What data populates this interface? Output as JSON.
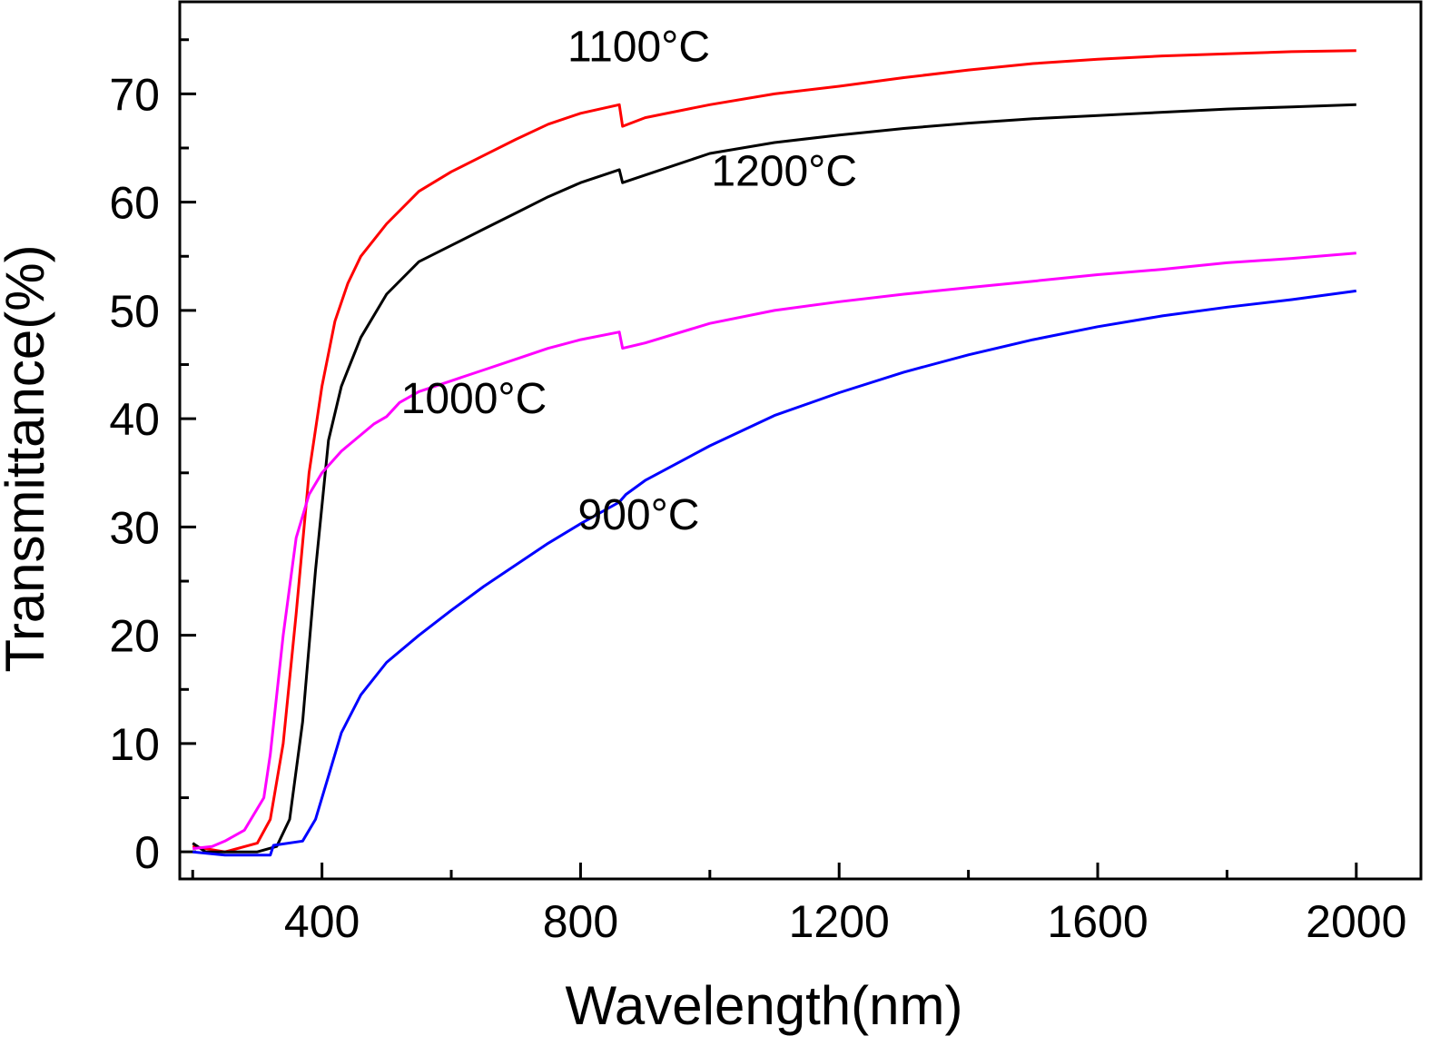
{
  "chart_data": {
    "type": "line",
    "xlabel": "Wavelength(nm)",
    "ylabel": "Transmittance(%)",
    "xlim": [
      180,
      2100
    ],
    "ylim": [
      -2.5,
      78.5
    ],
    "xticks": [
      400,
      800,
      1200,
      1600,
      2000
    ],
    "xtick_labels": [
      "400",
      "800",
      "1200",
      "1600",
      "2000"
    ],
    "yticks": [
      0,
      10,
      20,
      30,
      40,
      50,
      60,
      70
    ],
    "ytick_labels": [
      "0",
      "10",
      "20",
      "30",
      "40",
      "50",
      "60",
      "70"
    ],
    "grid": false,
    "legend": "none",
    "series": [
      {
        "color": "#ff0000",
        "points": [
          [
            200,
            0.5
          ],
          [
            250,
            0
          ],
          [
            300,
            0.8
          ],
          [
            320,
            3
          ],
          [
            340,
            10
          ],
          [
            360,
            22
          ],
          [
            380,
            35
          ],
          [
            400,
            43
          ],
          [
            420,
            49
          ],
          [
            440,
            52.5
          ],
          [
            460,
            55
          ],
          [
            500,
            58
          ],
          [
            550,
            61
          ],
          [
            600,
            62.8
          ],
          [
            650,
            64.3
          ],
          [
            700,
            65.8
          ],
          [
            750,
            67.2
          ],
          [
            800,
            68.2
          ],
          [
            860,
            69
          ],
          [
            865,
            67
          ],
          [
            900,
            67.8
          ],
          [
            1000,
            69
          ],
          [
            1100,
            70
          ],
          [
            1200,
            70.7
          ],
          [
            1300,
            71.5
          ],
          [
            1400,
            72.2
          ],
          [
            1500,
            72.8
          ],
          [
            1600,
            73.2
          ],
          [
            1700,
            73.5
          ],
          [
            1800,
            73.7
          ],
          [
            1900,
            73.9
          ],
          [
            2000,
            74
          ]
        ]
      },
      {
        "color": "#000000",
        "points": [
          [
            200,
            0.8
          ],
          [
            220,
            0
          ],
          [
            300,
            0
          ],
          [
            330,
            0.5
          ],
          [
            350,
            3
          ],
          [
            370,
            12
          ],
          [
            390,
            26
          ],
          [
            410,
            38
          ],
          [
            430,
            43
          ],
          [
            460,
            47.5
          ],
          [
            500,
            51.5
          ],
          [
            550,
            54.5
          ],
          [
            600,
            56
          ],
          [
            650,
            57.5
          ],
          [
            700,
            59
          ],
          [
            750,
            60.5
          ],
          [
            800,
            61.8
          ],
          [
            860,
            63
          ],
          [
            865,
            61.8
          ],
          [
            900,
            62.5
          ],
          [
            1000,
            64.5
          ],
          [
            1100,
            65.5
          ],
          [
            1200,
            66.2
          ],
          [
            1300,
            66.8
          ],
          [
            1400,
            67.3
          ],
          [
            1500,
            67.7
          ],
          [
            1600,
            68
          ],
          [
            1700,
            68.3
          ],
          [
            1800,
            68.6
          ],
          [
            1900,
            68.8
          ],
          [
            2000,
            69
          ]
        ]
      },
      {
        "color": "#ff00ff",
        "points": [
          [
            200,
            0.3
          ],
          [
            230,
            0.5
          ],
          [
            250,
            1
          ],
          [
            280,
            2
          ],
          [
            310,
            5
          ],
          [
            320,
            9
          ],
          [
            340,
            20
          ],
          [
            360,
            29
          ],
          [
            380,
            33
          ],
          [
            400,
            35
          ],
          [
            430,
            37
          ],
          [
            460,
            38.5
          ],
          [
            480,
            39.5
          ],
          [
            500,
            40.2
          ],
          [
            520,
            41.5
          ],
          [
            550,
            42.5
          ],
          [
            600,
            43.5
          ],
          [
            650,
            44.5
          ],
          [
            700,
            45.5
          ],
          [
            750,
            46.5
          ],
          [
            800,
            47.3
          ],
          [
            860,
            48
          ],
          [
            865,
            46.5
          ],
          [
            900,
            47
          ],
          [
            1000,
            48.8
          ],
          [
            1100,
            50
          ],
          [
            1200,
            50.8
          ],
          [
            1300,
            51.5
          ],
          [
            1400,
            52.1
          ],
          [
            1500,
            52.7
          ],
          [
            1600,
            53.3
          ],
          [
            1700,
            53.8
          ],
          [
            1800,
            54.4
          ],
          [
            1900,
            54.8
          ],
          [
            2000,
            55.3
          ]
        ]
      },
      {
        "color": "#0000ff",
        "points": [
          [
            200,
            0
          ],
          [
            250,
            -0.3
          ],
          [
            320,
            -0.3
          ],
          [
            325,
            0.6
          ],
          [
            370,
            1
          ],
          [
            390,
            3
          ],
          [
            410,
            7
          ],
          [
            430,
            11
          ],
          [
            460,
            14.5
          ],
          [
            500,
            17.5
          ],
          [
            550,
            20
          ],
          [
            600,
            22.3
          ],
          [
            650,
            24.5
          ],
          [
            700,
            26.5
          ],
          [
            750,
            28.5
          ],
          [
            800,
            30.3
          ],
          [
            860,
            32.3
          ],
          [
            870,
            33
          ],
          [
            900,
            34.3
          ],
          [
            1000,
            37.5
          ],
          [
            1100,
            40.3
          ],
          [
            1200,
            42.4
          ],
          [
            1300,
            44.3
          ],
          [
            1400,
            45.9
          ],
          [
            1500,
            47.3
          ],
          [
            1600,
            48.5
          ],
          [
            1700,
            49.5
          ],
          [
            1800,
            50.3
          ],
          [
            1900,
            51
          ],
          [
            2000,
            51.8
          ]
        ]
      }
    ],
    "annotations": [
      {
        "text": "1100°C",
        "x": 890,
        "y": 73
      },
      {
        "text": "1200°C",
        "x": 1115,
        "y": 61.5
      },
      {
        "text": "1000°C",
        "x": 635,
        "y": 40.5
      },
      {
        "text": "900°C",
        "x": 890,
        "y": 29.8
      }
    ]
  }
}
